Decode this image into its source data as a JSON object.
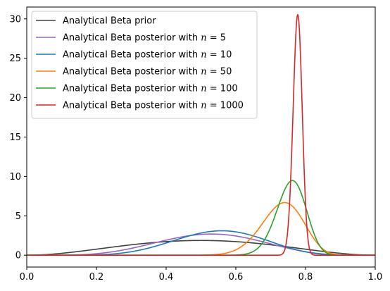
{
  "chart_data": {
    "type": "line",
    "title": "",
    "xlabel": "",
    "ylabel": "",
    "xlim": [
      0.0,
      1.0
    ],
    "ylim": [
      -1.5,
      31.5
    ],
    "x_ticks": [
      "0.0",
      "0.2",
      "0.4",
      "0.6",
      "0.8",
      "1.0"
    ],
    "y_ticks": [
      "0",
      "5",
      "10",
      "15",
      "20",
      "25",
      "30"
    ],
    "grid": false,
    "legend_position": "top-left",
    "series": [
      {
        "name": "Analytical Beta prior",
        "name_prefix": "Analytical Beta prior",
        "n_label": "",
        "color": "#404040",
        "alpha": 3,
        "beta": 3
      },
      {
        "name": "Analytical Beta posterior with n = 5",
        "name_prefix": "Analytical Beta posterior with ",
        "n_label": "n = 5",
        "color": "#9467bd",
        "alpha": 6.2,
        "beta": 5.6
      },
      {
        "name": "Analytical Beta posterior with n = 10",
        "name_prefix": "Analytical Beta posterior with ",
        "n_label": "n = 10",
        "color": "#1f77b4",
        "alpha": 8.5,
        "beta": 6.9
      },
      {
        "name": "Analytical Beta posterior with n = 50",
        "name_prefix": "Analytical Beta posterior with ",
        "n_label": "n = 50",
        "color": "#ff7f0e",
        "alpha": 40,
        "beta": 14.7
      },
      {
        "name": "Analytical Beta posterior with n = 100",
        "name_prefix": "Analytical Beta posterior with ",
        "n_label": "n = 100",
        "color": "#2ca02c",
        "alpha": 78,
        "beta": 25
      },
      {
        "name": "Analytical Beta posterior with n = 1000",
        "name_prefix": "Analytical Beta posterior with ",
        "n_label": "n = 1000",
        "color": "#d62728",
        "alpha": 788,
        "beta": 226
      }
    ]
  }
}
